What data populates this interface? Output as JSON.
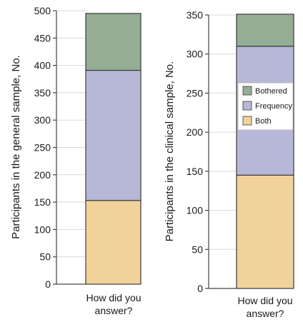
{
  "chart_data": [
    {
      "type": "bar",
      "stacked": true,
      "ylabel": "Participants in the general sample, No.",
      "xlabel": "",
      "categories": [
        "How did you answer?"
      ],
      "ylim": [
        0,
        500
      ],
      "yticks": [
        0,
        50,
        100,
        150,
        200,
        250,
        300,
        350,
        400,
        450,
        500
      ],
      "grid": true,
      "series": [
        {
          "name": "Both",
          "values": [
            153
          ],
          "color": "#f2d29b"
        },
        {
          "name": "Frequency",
          "values": [
            238
          ],
          "color": "#b7b7d8"
        },
        {
          "name": "Bothered",
          "values": [
            104
          ],
          "color": "#94ad94"
        }
      ]
    },
    {
      "type": "bar",
      "stacked": true,
      "ylabel": "Participants in the clinical sample, No.",
      "xlabel": "",
      "categories": [
        "How did you answer?"
      ],
      "ylim": [
        0,
        350
      ],
      "yticks": [
        0,
        50,
        100,
        150,
        200,
        250,
        300,
        350
      ],
      "grid": true,
      "legend": {
        "position": "inside-right",
        "entries": [
          {
            "name": "Bothered",
            "color": "#94ad94"
          },
          {
            "name": "Frequency",
            "color": "#b7b7d8"
          },
          {
            "name": "Both",
            "color": "#f2d29b"
          }
        ]
      },
      "series": [
        {
          "name": "Both",
          "values": [
            145
          ],
          "color": "#f2d29b"
        },
        {
          "name": "Frequency",
          "values": [
            165
          ],
          "color": "#b7b7d8"
        },
        {
          "name": "Bothered",
          "values": [
            41
          ],
          "color": "#94ad94"
        }
      ]
    }
  ]
}
